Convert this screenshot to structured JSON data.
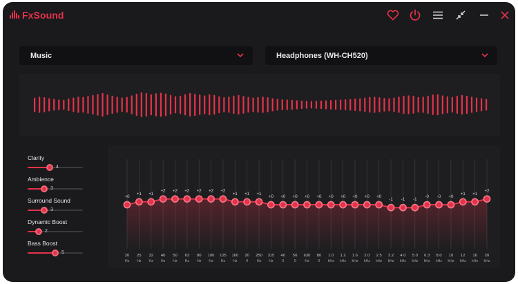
{
  "app": {
    "name": "FxSound"
  },
  "colors": {
    "accent": "#e5324a",
    "window_bg": "#1a1a1c",
    "panel_bg": "#1e1e20",
    "select_bg": "#111113",
    "text": "#e8e8ea"
  },
  "titlebar": {
    "icons": [
      "heart-icon",
      "power-icon",
      "menu-icon",
      "minimize-view-icon",
      "minimize-icon",
      "close-icon"
    ]
  },
  "preset_select": {
    "value": "Music"
  },
  "output_select": {
    "value": "Headphones (WH-CH520)"
  },
  "effects": [
    {
      "label": "Clarity",
      "value": "4",
      "level": 4
    },
    {
      "label": "Ambience",
      "value": "3",
      "level": 3
    },
    {
      "label": "Surround Sound",
      "value": "3",
      "level": 3
    },
    {
      "label": "Dynamic Boost",
      "value": "2",
      "level": 2
    },
    {
      "label": "Bass Boost",
      "value": "5",
      "level": 5
    }
  ],
  "effects_max": 10,
  "eq": {
    "range": [
      -12,
      12
    ],
    "bands": [
      {
        "freq": "20",
        "unit": "Hz",
        "gain_label": "+0",
        "gain": 0
      },
      {
        "freq": "25",
        "unit": "Hz",
        "gain_label": "+1",
        "gain": 1
      },
      {
        "freq": "32",
        "unit": "Hz",
        "gain_label": "+1",
        "gain": 1
      },
      {
        "freq": "40",
        "unit": "Hz",
        "gain_label": "+2",
        "gain": 2
      },
      {
        "freq": "50",
        "unit": "Hz",
        "gain_label": "+2",
        "gain": 2
      },
      {
        "freq": "63",
        "unit": "Hz",
        "gain_label": "+2",
        "gain": 2
      },
      {
        "freq": "80",
        "unit": "Hz",
        "gain_label": "+2",
        "gain": 2
      },
      {
        "freq": "100",
        "unit": "Hz",
        "gain_label": "+2",
        "gain": 2
      },
      {
        "freq": "125",
        "unit": "Hz",
        "gain_label": "+2",
        "gain": 2
      },
      {
        "freq": "160",
        "unit": "Hz",
        "gain_label": "+1",
        "gain": 1
      },
      {
        "freq": "20",
        "unit": "0",
        "gain_label": "+1",
        "gain": 1
      },
      {
        "freq": "250",
        "unit": "Hz",
        "gain_label": "+1",
        "gain": 1
      },
      {
        "freq": "315",
        "unit": "Hz",
        "gain_label": "+0",
        "gain": 0
      },
      {
        "freq": "40",
        "unit": "0",
        "gain_label": "+0",
        "gain": 0
      },
      {
        "freq": "50",
        "unit": "0",
        "gain_label": "+0",
        "gain": 0
      },
      {
        "freq": "630",
        "unit": "Hz",
        "gain_label": "+0",
        "gain": 0
      },
      {
        "freq": "80",
        "unit": "0",
        "gain_label": "+0",
        "gain": 0
      },
      {
        "freq": "1.0",
        "unit": "kHz",
        "gain_label": "+0",
        "gain": 0
      },
      {
        "freq": "1.2",
        "unit": "kHz",
        "gain_label": "+0",
        "gain": 0
      },
      {
        "freq": "1.6",
        "unit": "kHz",
        "gain_label": "+0",
        "gain": 0
      },
      {
        "freq": "2.0",
        "unit": "kHz",
        "gain_label": "+0",
        "gain": 0
      },
      {
        "freq": "2.5",
        "unit": "kHz",
        "gain_label": "+0",
        "gain": 0
      },
      {
        "freq": "3.2",
        "unit": "kHz",
        "gain_label": "-1",
        "gain": -1
      },
      {
        "freq": "4.0",
        "unit": "kHz",
        "gain_label": "-1",
        "gain": -1
      },
      {
        "freq": "5.0",
        "unit": "kHz",
        "gain_label": "-1",
        "gain": -1
      },
      {
        "freq": "6.3",
        "unit": "kHz",
        "gain_label": "-0",
        "gain": 0
      },
      {
        "freq": "8.0",
        "unit": "kHz",
        "gain_label": "-0",
        "gain": 0
      },
      {
        "freq": "10",
        "unit": "kHz",
        "gain_label": "+0",
        "gain": 0
      },
      {
        "freq": "12",
        "unit": "kHz",
        "gain_label": "+1",
        "gain": 1
      },
      {
        "freq": "16",
        "unit": "kHz",
        "gain_label": "+1",
        "gain": 1
      },
      {
        "freq": "20",
        "unit": "kHz",
        "gain_label": "+2",
        "gain": 2
      }
    ]
  },
  "waveform": {
    "levels": [
      0.55,
      0.62,
      0.58,
      0.5,
      0.45,
      0.4,
      0.38,
      0.48,
      0.55,
      0.62,
      0.6,
      0.68,
      0.75,
      0.82,
      0.9,
      0.78,
      0.7,
      0.62,
      0.55,
      0.6,
      0.72,
      0.85,
      0.95,
      0.9,
      0.8,
      0.88,
      0.92,
      0.86,
      0.75,
      0.65,
      0.7,
      0.8,
      0.9,
      0.85,
      0.78,
      0.72,
      0.8,
      0.75,
      0.65,
      0.58,
      0.62,
      0.7,
      0.75,
      0.68,
      0.6,
      0.55,
      0.6,
      0.62,
      0.58,
      0.5,
      0.45,
      0.42,
      0.4,
      0.38,
      0.35,
      0.32,
      0.3,
      0.28,
      0.3,
      0.32,
      0.34,
      0.36,
      0.38,
      0.4,
      0.42,
      0.45,
      0.48,
      0.5,
      0.55,
      0.6,
      0.62,
      0.58,
      0.52,
      0.5,
      0.55,
      0.62,
      0.7,
      0.72,
      0.68,
      0.6,
      0.62,
      0.7,
      0.78,
      0.8,
      0.72,
      0.65,
      0.6,
      0.68,
      0.75,
      0.7,
      0.62,
      0.55,
      0.5,
      0.45
    ]
  }
}
